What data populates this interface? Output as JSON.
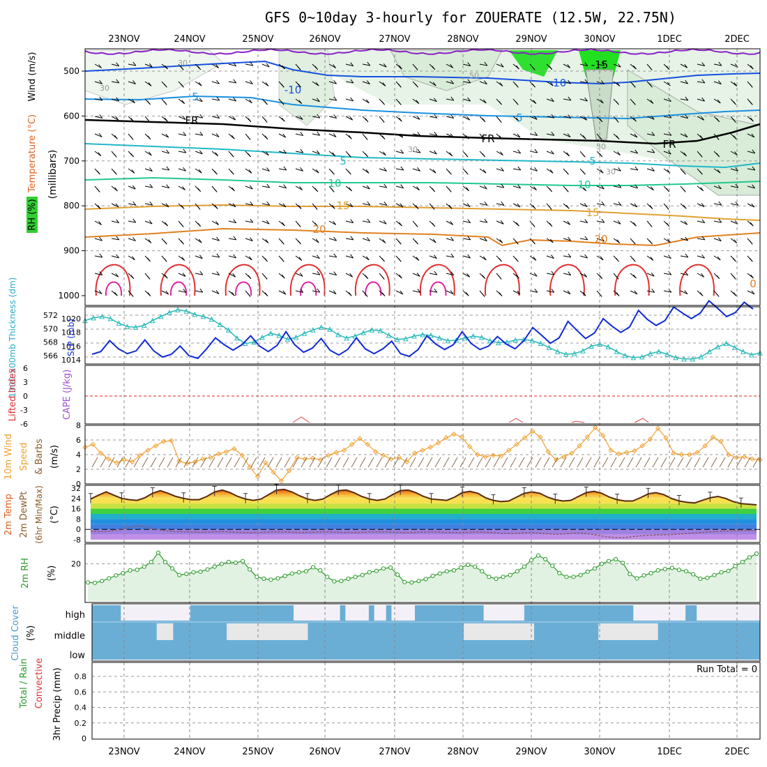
{
  "chart_data": {
    "type": "line",
    "title": "GFS 0~10day 3-hourly for ZOUERATE (12.5W, 22.75N)",
    "dates": [
      "23NOV",
      "24NOV",
      "25NOV",
      "26NOV",
      "27NOV",
      "28NOV",
      "29NOV",
      "30NOV",
      "1DEC",
      "2DEC"
    ],
    "panels": {
      "upper_air": {
        "ylabel_rh": "RH (%)",
        "ylabel_temp": "Temperature (°C)",
        "ylabel_wind": "Wind (m/s)",
        "ylabel_units": "(millibars)",
        "yticks": [
          "500",
          "600",
          "700",
          "800",
          "900",
          "1000"
        ],
        "contour_labels": [
          "-15",
          "-10",
          "-10",
          "5",
          "5",
          "FR",
          "FR",
          "FR",
          "5",
          "5",
          "10",
          "10",
          "15",
          "15",
          "20",
          "20",
          "0",
          "30",
          "30",
          "30",
          "50",
          "50",
          "30"
        ]
      },
      "slp_thickness": {
        "ylabel_left": "1000-500mb Thickness (dm)",
        "ylabel_right": "SLP (mb)",
        "thickness_ticks": [
          "572",
          "570",
          "568",
          "566"
        ],
        "slp_ticks": [
          "1020",
          "1018",
          "1016",
          "1014"
        ],
        "thickness": [
          571.2,
          571.6,
          571.8,
          571.5,
          570.8,
          570.3,
          570.2,
          570.5,
          571.2,
          571.8,
          572.4,
          572.8,
          572.6,
          572.1,
          571.8,
          571.4,
          570.6,
          569.8,
          568.6,
          567.8,
          568.0,
          568.7,
          569.3,
          569.0,
          568.4,
          568.7,
          569.3,
          569.8,
          570.2,
          569.9,
          569.1,
          568.6,
          568.9,
          569.4,
          569.8,
          569.7,
          569.0,
          568.4,
          568.5,
          568.9,
          569.1,
          569.0,
          568.6,
          568.2,
          568.3,
          568.6,
          568.9,
          568.7,
          568.2,
          567.9,
          568.0,
          568.3,
          568.4,
          568.2,
          567.8,
          567.2,
          566.6,
          566.2,
          566.3,
          566.7,
          567.4,
          567.7,
          567.3,
          566.6,
          566.0,
          565.7,
          565.8,
          566.3,
          566.6,
          566.2,
          565.7,
          565.5,
          565.5,
          565.8,
          566.6,
          567.3,
          567.8,
          567.2,
          566.6,
          566.1,
          566.4
        ],
        "slp": [
          1014.8,
          1015.2,
          1016.8,
          1015.6,
          1014.9,
          1015.3,
          1016.9,
          1015.3,
          1014.4,
          1014.8,
          1016.0,
          1014.6,
          1014.2,
          1015.6,
          1017.2,
          1016.2,
          1015.4,
          1016.2,
          1017.5,
          1016.0,
          1015.2,
          1016.1,
          1018.1,
          1016.2,
          1015.1,
          1015.7,
          1017.1,
          1015.4,
          1014.7,
          1015.5,
          1017.2,
          1015.6,
          1014.9,
          1015.6,
          1016.7,
          1014.9,
          1014.5,
          1015.5,
          1017.5,
          1016.3,
          1015.5,
          1016.2,
          1018.1,
          1016.4,
          1015.5,
          1016.0,
          1017.4,
          1016.3,
          1015.6,
          1016.8,
          1018.7,
          1017.6,
          1016.4,
          1017.2,
          1019.6,
          1018.3,
          1017.1,
          1017.9,
          1020.0,
          1018.9,
          1018.0,
          1018.8,
          1021.2,
          1019.9,
          1019.0,
          1019.7,
          1021.7,
          1020.8,
          1020.0,
          1020.8,
          1022.6,
          1021.5,
          1020.3,
          1020.9,
          1022.4,
          1021.4
        ]
      },
      "cape_li": {
        "ylabel_left": "Lifted Index",
        "ylabel_right": "CAPE (J/kg)",
        "yticks": [
          "6",
          "3",
          "0",
          "-3",
          "-6"
        ]
      },
      "wind10m": {
        "ylabel": "10m Wind Speed & Barbs (m/s)",
        "ylabel_a": "10m Wind",
        "ylabel_b": "Speed",
        "ylabel_c": "& Barbs",
        "ylabel_d": "(m/s)",
        "yticks": [
          "0",
          "2",
          "4",
          "6",
          "8"
        ],
        "speed": [
          5.0,
          5.4,
          4.2,
          3.4,
          2.9,
          3.3,
          3.0,
          3.9,
          4.6,
          5.2,
          5.8,
          5.9,
          3.1,
          2.8,
          3.0,
          3.4,
          3.6,
          4.1,
          4.4,
          4.8,
          3.9,
          2.3,
          1.0,
          2.9,
          1.6,
          0.4,
          1.8,
          3.6,
          3.4,
          3.5,
          3.3,
          3.9,
          4.3,
          4.6,
          5.4,
          6.2,
          5.4,
          4.4,
          3.9,
          3.4,
          3.6,
          3.0,
          4.2,
          4.6,
          5.0,
          5.6,
          6.3,
          6.8,
          6.4,
          5.1,
          4.0,
          3.7,
          3.9,
          3.8,
          4.6,
          5.4,
          6.3,
          7.2,
          6.4,
          4.4,
          3.3,
          3.7,
          4.2,
          5.2,
          6.4,
          7.7,
          6.6,
          4.6,
          4.1,
          4.3,
          4.5,
          5.2,
          6.1,
          7.6,
          6.3,
          4.2,
          4.0,
          4.0,
          4.3,
          5.2,
          6.4,
          5.8,
          4.0,
          3.6,
          3.7,
          3.4,
          3.3
        ]
      },
      "temp2m": {
        "ylabel": "2m Temp 2m DewPt (6hr Min/Max) (°C)",
        "ylabel_a": "2m Temp",
        "ylabel_b": "2m DewPt",
        "ylabel_c": "(6hr Min/Max)",
        "ylabel_d": "(°C)",
        "yticks": [
          "32",
          "24",
          "16",
          "8",
          "0",
          "-8"
        ],
        "temp": [
          23.5,
          26.5,
          29.0,
          26.5,
          24.0,
          23.0,
          22.5,
          24.5,
          28.0,
          30.0,
          28.0,
          25.5,
          24.0,
          23.0,
          23.0,
          25.5,
          29.0,
          30.5,
          28.5,
          25.5,
          23.5,
          22.5,
          23.5,
          27.0,
          30.5,
          31.0,
          29.0,
          26.0,
          23.5,
          22.5,
          23.5,
          27.0,
          30.0,
          30.5,
          28.5,
          25.5,
          23.5,
          22.5,
          23.5,
          27.0,
          30.0,
          30.5,
          28.5,
          25.5,
          23.5,
          23.0,
          22.5,
          25.0,
          28.5,
          29.5,
          28.0,
          24.5,
          22.5,
          21.5,
          22.0,
          25.0,
          28.0,
          29.0,
          28.0,
          25.0,
          23.0,
          22.0,
          22.5,
          25.5,
          28.5,
          29.5,
          28.0,
          25.0,
          23.0,
          22.0,
          22.0,
          24.5,
          27.5,
          28.5,
          27.0,
          24.0,
          22.0,
          21.0,
          20.5,
          22.5,
          24.5,
          25.5,
          24.0,
          21.5,
          20.0,
          19.5,
          19.0
        ],
        "dewpt": [
          -1.5,
          -1.8,
          -1.6,
          -1.0,
          0.0,
          1.5,
          2.8,
          2.0,
          0.5,
          -0.5,
          -1.3,
          -1.8,
          -1.9,
          -2.0,
          -2.2,
          -2.1,
          -1.9,
          -1.8,
          -2.0,
          -2.3,
          -2.5,
          -2.6,
          -2.4,
          -2.1,
          -1.9,
          -2.0,
          -2.2,
          -2.5,
          -2.4,
          -2.2,
          -2.0,
          -2.1,
          -2.3,
          -2.4,
          -2.5,
          -2.3,
          -2.0,
          -1.9,
          -2.0,
          -2.2,
          -2.4,
          -2.5,
          -2.3,
          -2.1,
          -2.0,
          -2.2,
          -2.4,
          -2.6,
          -2.5,
          -2.3,
          -2.1,
          -2.2,
          -2.6,
          -3.0,
          -3.2,
          -3.0,
          -2.7,
          -2.6,
          -2.9,
          -3.4,
          -3.8,
          -3.6,
          -3.0,
          -2.8,
          -3.2,
          -4.0,
          -5.2,
          -6.0,
          -6.5,
          -6.3,
          -5.6,
          -5.0,
          -4.6,
          -4.4,
          -4.2,
          -4.0,
          -3.6,
          -3.2,
          -2.8,
          -2.4,
          -2.0,
          -1.6,
          -1.3,
          -1.2,
          -1.0,
          -1.0,
          -0.9
        ]
      },
      "rh2m": {
        "ylabel_a": "2m RH",
        "ylabel_b": "(%)",
        "yticks": [
          "20"
        ],
        "rh": [
          10.0,
          9.8,
          10.8,
          12.2,
          13.8,
          15.0,
          16.5,
          16.8,
          18.5,
          21.0,
          26.0,
          21.0,
          17.5,
          14.0,
          14.6,
          15.5,
          15.8,
          17.0,
          18.5,
          20.0,
          21.0,
          20.6,
          21.5,
          17.0,
          13.0,
          12.0,
          11.5,
          12.2,
          13.5,
          14.8,
          15.5,
          16.0,
          18.2,
          16.5,
          13.0,
          10.6,
          10.8,
          12.0,
          13.0,
          14.0,
          15.5,
          16.2,
          17.5,
          18.0,
          14.2,
          10.2,
          10.0,
          10.8,
          11.8,
          13.5,
          14.8,
          16.0,
          16.5,
          18.0,
          19.5,
          18.5,
          16.0,
          13.0,
          12.0,
          13.0,
          14.0,
          16.0,
          18.5,
          22.0,
          24.5,
          22.5,
          19.0,
          15.0,
          13.0,
          13.0,
          14.0,
          15.8,
          17.5,
          20.0,
          21.5,
          22.5,
          20.5,
          14.5,
          12.2,
          13.8,
          15.0,
          16.5,
          17.2,
          17.8,
          16.8,
          16.0,
          14.4,
          12.0,
          12.5,
          14.0,
          15.5,
          16.2,
          18.8,
          21.0,
          23.5,
          25.5
        ]
      },
      "cloud": {
        "ylabel": "Cloud Cover (%)",
        "ylabel_a": "Cloud Cover",
        "ylabel_b": "(%)",
        "layers": [
          "high",
          "middle",
          "low"
        ],
        "high": [
          100,
          100,
          100,
          100,
          100,
          0,
          0,
          0,
          0,
          0,
          0,
          0,
          0,
          0,
          0,
          0,
          0,
          100,
          100,
          100,
          100,
          100,
          100,
          100,
          100,
          100,
          100,
          100,
          100,
          100,
          100,
          100,
          100,
          100,
          100,
          0,
          0,
          0,
          0,
          0,
          0,
          0,
          0,
          100,
          0,
          0,
          0,
          0,
          100,
          0,
          0,
          100,
          0,
          0,
          0,
          0,
          100,
          100,
          100,
          100,
          100,
          100,
          100,
          100,
          100,
          100,
          100,
          100,
          0,
          0,
          0,
          0,
          0,
          0,
          0,
          100,
          100,
          100,
          100,
          100,
          100,
          100,
          100,
          100,
          100,
          100,
          100,
          100,
          100,
          100,
          100,
          100,
          100,
          100,
          0,
          0,
          0,
          0,
          0,
          0,
          0,
          0,
          0,
          100,
          100,
          0,
          0,
          0,
          0,
          0,
          0,
          0,
          0,
          0,
          0,
          0
        ],
        "middle": [
          100,
          100,
          100,
          100,
          100,
          100,
          100,
          100,
          100,
          100,
          100,
          100,
          0,
          0,
          0,
          100,
          100,
          100,
          100,
          100,
          100,
          100,
          100,
          100,
          100,
          0,
          0,
          0,
          0,
          0,
          0,
          0,
          0,
          0,
          0,
          0,
          0,
          0,
          0,
          0,
          100,
          100,
          100,
          100,
          100,
          100,
          100,
          100,
          100,
          100,
          100,
          100,
          100,
          100,
          100,
          100,
          100,
          100,
          100,
          100,
          100,
          100,
          100,
          100,
          100,
          100,
          100,
          100,
          100,
          0,
          0,
          0,
          0,
          0,
          0,
          0,
          0,
          0,
          0,
          0,
          0,
          0,
          100,
          100,
          100,
          100,
          100,
          100,
          100,
          100,
          100,
          100,
          100,
          100,
          0,
          0,
          0,
          0,
          0,
          0,
          0,
          0,
          0,
          0,
          0,
          100,
          100,
          100,
          100,
          100,
          100,
          100,
          100,
          100,
          100,
          100,
          100,
          100,
          100,
          100,
          100,
          100,
          100,
          100
        ]
      },
      "precip": {
        "ylabel_a": "Total / Rain",
        "ylabel_b": "Convective",
        "ylabel_c": "3hr Precip (mm)",
        "yticks": [
          "0",
          "0.2",
          "0.4",
          "0.6",
          "0.8"
        ],
        "run_total": "Run Total = 0",
        "values": []
      }
    },
    "colors": {
      "slp": "#0e2ad4",
      "thickness": "#28b8b8",
      "wind_speed": "#f0a030",
      "rh": "#2a9b2a",
      "rh_fill": "#e2f2e2",
      "cloud": "#6aaed6",
      "li_zero": "#e02020",
      "fr_line": "#000000"
    }
  }
}
